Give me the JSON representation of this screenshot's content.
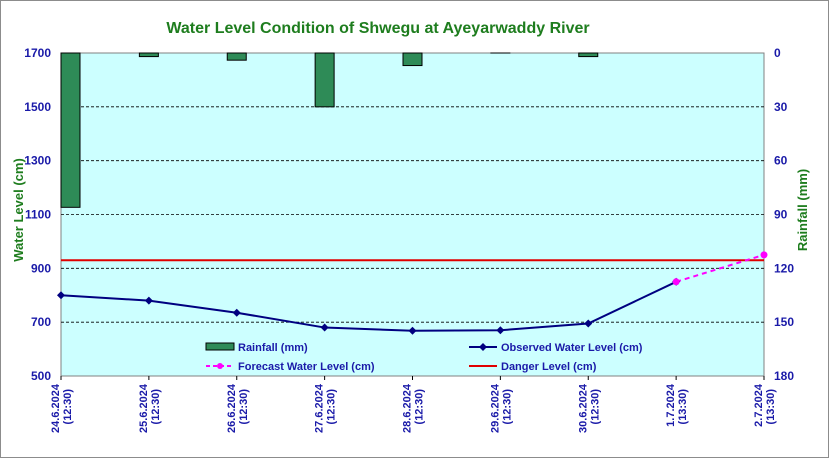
{
  "chart_data": {
    "type": "line",
    "title": "Water Level Condition of Shwegu at Ayeyarwaddy River",
    "ylabel": "Water  Level (cm)",
    "y2label": "Rainfall (mm)",
    "ylim": [
      500,
      1700
    ],
    "y2lim": [
      0,
      180
    ],
    "y2_inverted": true,
    "yticks": [
      "1700",
      "1500",
      "1300",
      "1100",
      "900",
      "700",
      "500"
    ],
    "y2ticks": [
      "0",
      "30",
      "60",
      "90",
      "120",
      "150",
      "180"
    ],
    "categories": [
      [
        "24.6.2024",
        "(12:30)"
      ],
      [
        "25.6.2024",
        "(12:30)"
      ],
      [
        "26.6.2024",
        "(12:30)"
      ],
      [
        "27.6.2024",
        "(12:30)"
      ],
      [
        "28.6.2024",
        "(12:30)"
      ],
      [
        "29.6.2024",
        "(12:30)"
      ],
      [
        "30.6.2024",
        "(12:30)"
      ],
      [
        "1.7.2024",
        "(13:30)"
      ],
      [
        "2.7.2024",
        "(13:30)"
      ]
    ],
    "grid": true,
    "legend_position": "bottom-center",
    "series": [
      {
        "name": "Rainfall (mm)",
        "kind": "bar",
        "axis": "right",
        "color": "#2e8b57",
        "values": [
          86,
          2,
          4,
          30,
          7,
          0,
          2,
          null,
          null
        ]
      },
      {
        "name": "Observed Water Level (cm)",
        "kind": "line",
        "axis": "left",
        "color": "#000080",
        "marker": "diamond",
        "values": [
          800,
          780,
          735,
          680,
          668,
          670,
          695,
          850,
          null
        ]
      },
      {
        "name": "Forecast Water Level (cm)",
        "kind": "line",
        "axis": "left",
        "color": "#ff00ff",
        "dashed": true,
        "marker": "circle",
        "values": [
          null,
          null,
          null,
          null,
          null,
          null,
          null,
          850,
          950
        ]
      },
      {
        "name": "Danger Level (cm)",
        "kind": "hline",
        "axis": "left",
        "color": "#e00000",
        "value": 930
      }
    ],
    "colors": {
      "plot_background": "#ccffff",
      "title": "#1e7d1e",
      "tick_labels": "#1a1aa8"
    }
  }
}
